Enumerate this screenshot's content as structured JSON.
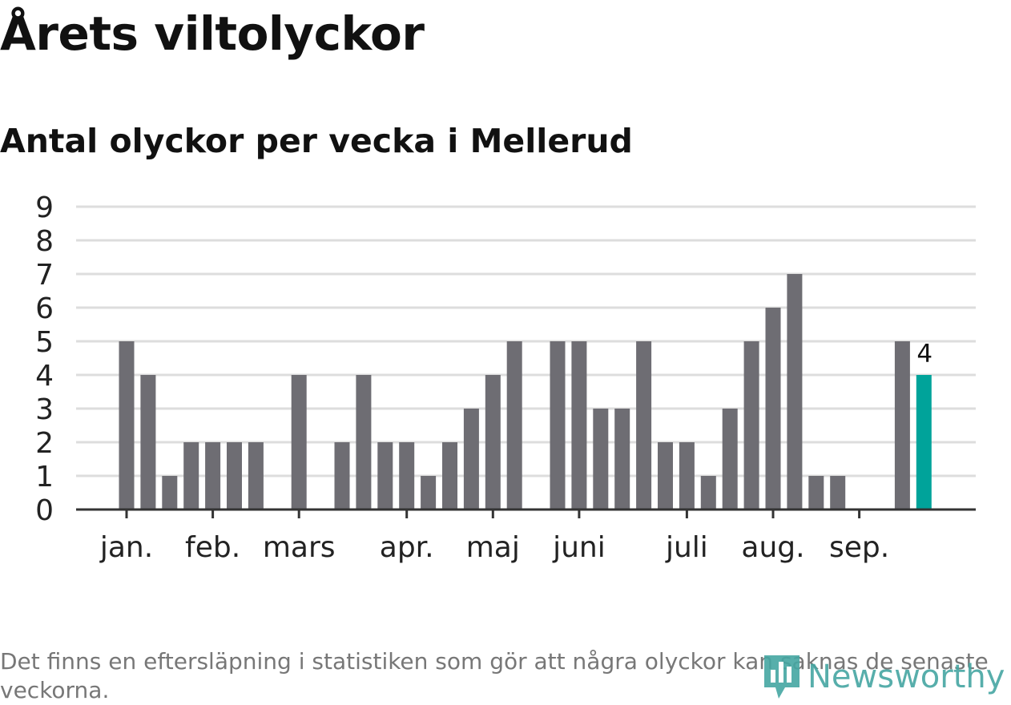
{
  "title": "Årets viltolyckor",
  "subtitle": "Antal olyckor per vecka i Mellerud",
  "footnote": "Det finns en eftersläpning i statistiken som gör att några olyckor kan saknas de senaste veckorna.",
  "logo": {
    "text": "Newsworthy",
    "icon": "newsworthy-logo-icon"
  },
  "colors": {
    "bar": "#6e6d73",
    "highlight": "#00a39a",
    "grid": "#dddddd",
    "axis": "#333333",
    "text": "#222222",
    "logo": "#45a6a2"
  },
  "chart_data": {
    "type": "bar",
    "title": "Antal olyckor per vecka i Mellerud",
    "xlabel": "",
    "ylabel": "",
    "ylim": [
      0,
      9
    ],
    "yticks": [
      "0",
      "1",
      "2",
      "3",
      "4",
      "5",
      "6",
      "7",
      "8",
      "9"
    ],
    "grid": true,
    "weeks": [
      1,
      2,
      3,
      4,
      5,
      6,
      7,
      8,
      9,
      10,
      11,
      12,
      13,
      14,
      15,
      16,
      17,
      18,
      19,
      20,
      21,
      22,
      23,
      24,
      25,
      26,
      27,
      28,
      29,
      30,
      31,
      32,
      33,
      34,
      35,
      36,
      37,
      38
    ],
    "values": [
      5,
      4,
      1,
      2,
      2,
      2,
      2,
      0,
      4,
      0,
      2,
      4,
      2,
      2,
      1,
      2,
      3,
      4,
      5,
      0,
      5,
      5,
      3,
      3,
      5,
      2,
      2,
      1,
      3,
      5,
      6,
      7,
      1,
      1,
      0,
      0,
      5,
      4
    ],
    "highlight_index": 37,
    "highlight_label": "4",
    "month_ticks": [
      {
        "label": "jan.",
        "week": 1
      },
      {
        "label": "feb.",
        "week": 5
      },
      {
        "label": "mars",
        "week": 9
      },
      {
        "label": "apr.",
        "week": 14
      },
      {
        "label": "maj",
        "week": 18
      },
      {
        "label": "juni",
        "week": 22
      },
      {
        "label": "juli",
        "week": 27
      },
      {
        "label": "aug.",
        "week": 31
      },
      {
        "label": "sep.",
        "week": 35
      }
    ]
  }
}
